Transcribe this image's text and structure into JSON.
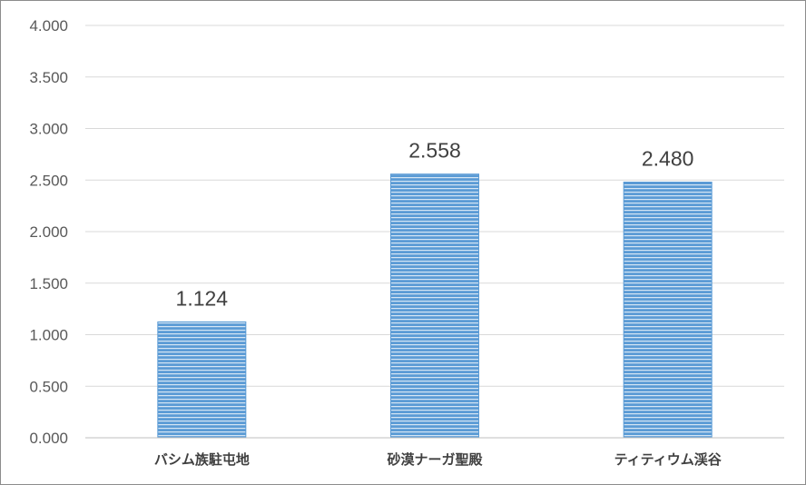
{
  "chart_data": {
    "type": "bar",
    "categories": [
      "バシム族駐屯地",
      "砂漠ナーガ聖殿",
      "ティティウム渓谷"
    ],
    "values": [
      1.124,
      2.558,
      2.48
    ],
    "data_labels": [
      "1.124",
      "2.558",
      "2.480"
    ],
    "y_ticks": [
      "0.000",
      "0.500",
      "1.000",
      "1.500",
      "2.000",
      "2.500",
      "3.000",
      "3.500",
      "4.000"
    ],
    "ylim": [
      0,
      4
    ],
    "grid": true,
    "legend": "none",
    "bar_color": "#5b9bd5",
    "bar_stripe_color": "#ffffff",
    "gridline_color": "#d9d9d9",
    "axis_color": "#bfbfbf"
  }
}
